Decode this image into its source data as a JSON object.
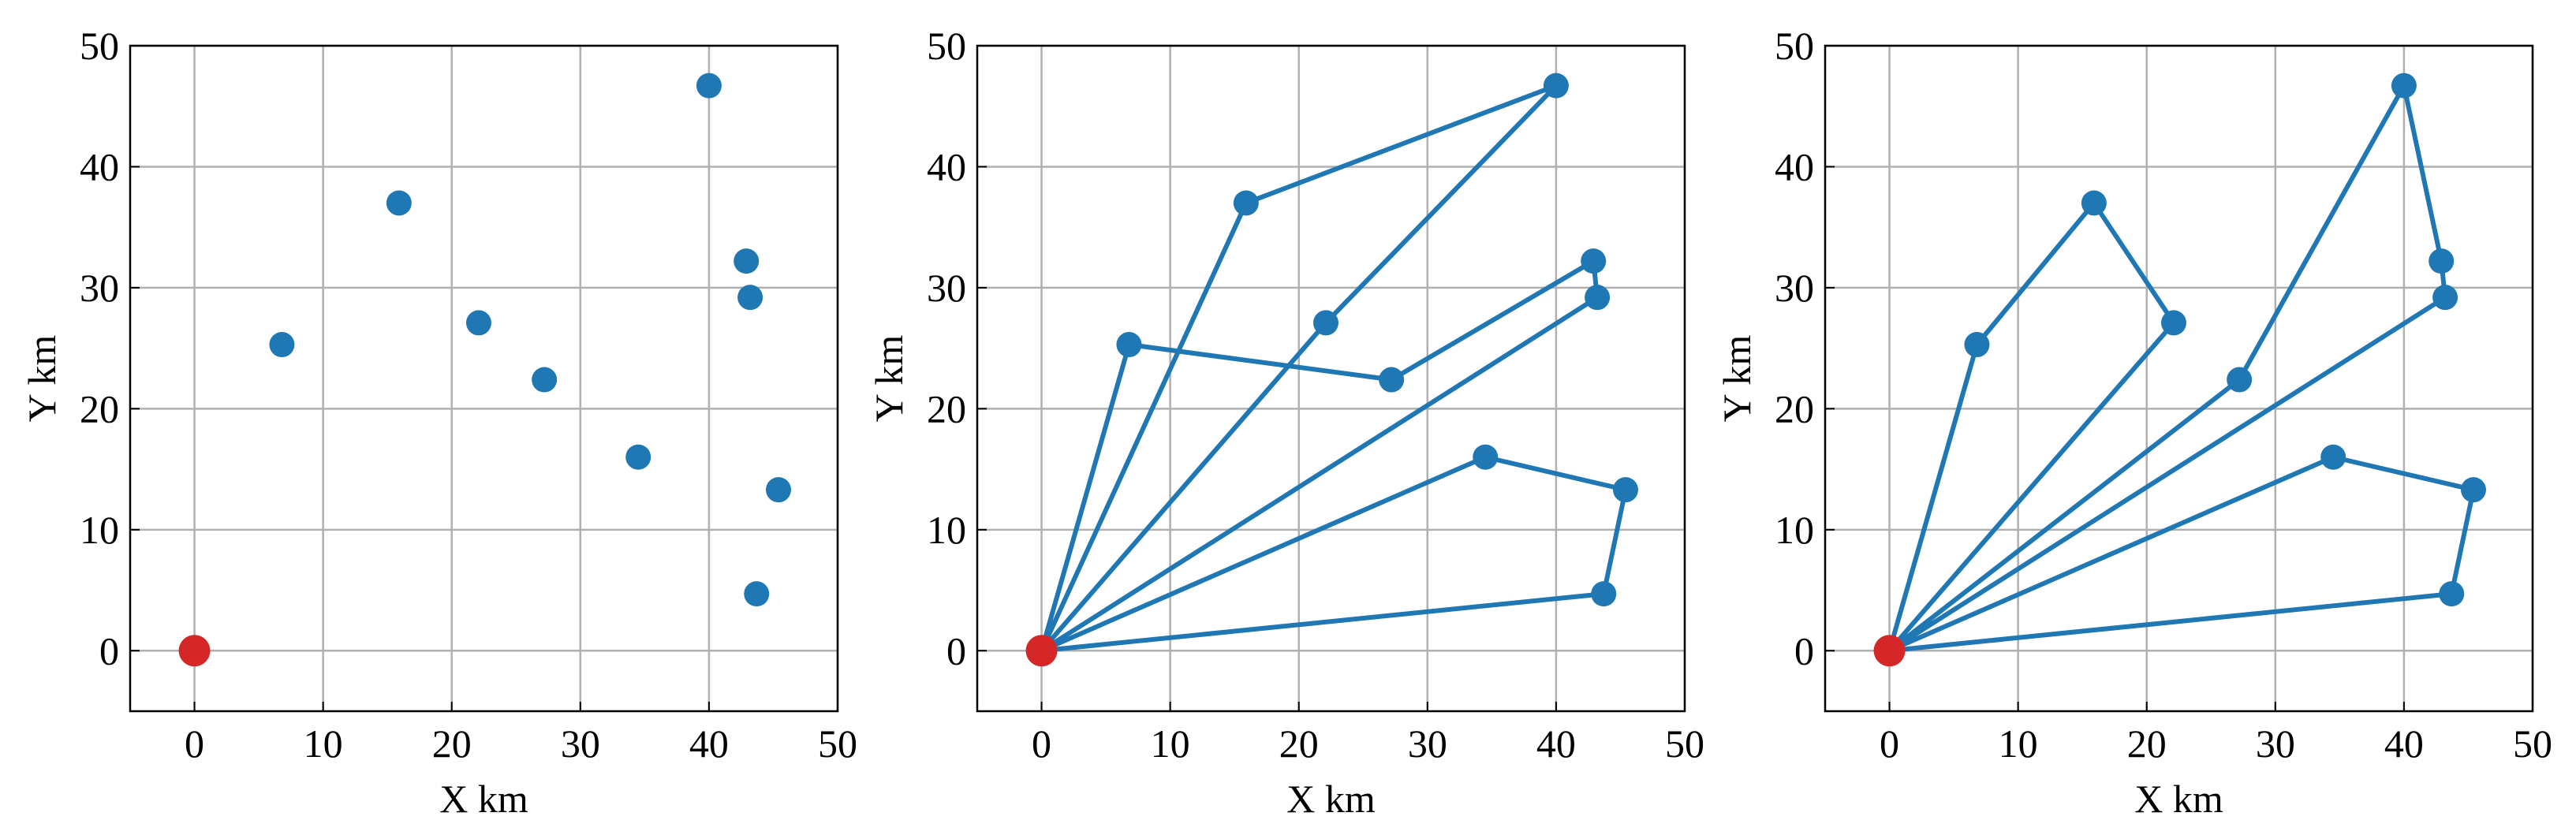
{
  "chart_data": [
    {
      "type": "scatter",
      "xlabel": "X km",
      "ylabel": "Y km",
      "xlim": [
        -5,
        50
      ],
      "ylim": [
        -5,
        50
      ],
      "xticks": [
        0,
        10,
        20,
        30,
        40,
        50
      ],
      "yticks": [
        0,
        10,
        20,
        30,
        40,
        50
      ],
      "grid": true,
      "points": {
        "color": "#1f77b4",
        "x": [
          6.8,
          15.9,
          22.1,
          27.2,
          34.5,
          40.0,
          42.9,
          43.2,
          45.4,
          43.7
        ],
        "y": [
          25.3,
          37.0,
          27.1,
          22.4,
          16.0,
          46.7,
          32.2,
          29.2,
          13.3,
          4.7
        ]
      },
      "depot": {
        "color": "#d62728",
        "x": 0,
        "y": 0
      }
    },
    {
      "type": "route",
      "xlabel": "X km",
      "ylabel": "Y km",
      "xlim": [
        -5,
        50
      ],
      "ylim": [
        -5,
        50
      ],
      "xticks": [
        0,
        10,
        20,
        30,
        40,
        50
      ],
      "yticks": [
        0,
        10,
        20,
        30,
        40,
        50
      ],
      "grid": true,
      "line_color": "#1f77b4",
      "routes": [
        {
          "x": [
            0,
            6.8,
            27.2,
            42.9,
            43.2,
            0
          ],
          "y": [
            0,
            25.3,
            22.4,
            32.2,
            29.2,
            0
          ]
        },
        {
          "x": [
            0,
            15.9,
            40.0,
            22.1,
            0
          ],
          "y": [
            0,
            37.0,
            46.7,
            27.1,
            0
          ]
        },
        {
          "x": [
            0,
            34.5,
            45.4,
            43.7,
            0
          ],
          "y": [
            0,
            16.0,
            13.3,
            4.7,
            0
          ]
        }
      ],
      "points": {
        "color": "#1f77b4",
        "x": [
          6.8,
          15.9,
          22.1,
          27.2,
          34.5,
          40.0,
          42.9,
          43.2,
          45.4,
          43.7
        ],
        "y": [
          25.3,
          37.0,
          27.1,
          22.4,
          16.0,
          46.7,
          32.2,
          29.2,
          13.3,
          4.7
        ]
      },
      "depot": {
        "color": "#d62728",
        "x": 0,
        "y": 0
      }
    },
    {
      "type": "route",
      "xlabel": "X km",
      "ylabel": "Y km",
      "xlim": [
        -5,
        50
      ],
      "ylim": [
        -5,
        50
      ],
      "xticks": [
        0,
        10,
        20,
        30,
        40,
        50
      ],
      "yticks": [
        0,
        10,
        20,
        30,
        40,
        50
      ],
      "grid": true,
      "line_color": "#1f77b4",
      "routes": [
        {
          "x": [
            0,
            6.8,
            15.9,
            22.1,
            0
          ],
          "y": [
            0,
            25.3,
            37.0,
            27.1,
            0
          ]
        },
        {
          "x": [
            0,
            27.2,
            40.0,
            42.9,
            43.2,
            0
          ],
          "y": [
            0,
            22.4,
            46.7,
            32.2,
            29.2,
            0
          ]
        },
        {
          "x": [
            0,
            34.5,
            45.4,
            43.7,
            0
          ],
          "y": [
            0,
            16.0,
            13.3,
            4.7,
            0
          ]
        }
      ],
      "points": {
        "color": "#1f77b4",
        "x": [
          6.8,
          15.9,
          22.1,
          27.2,
          34.5,
          40.0,
          42.9,
          43.2,
          45.4,
          43.7
        ],
        "y": [
          25.3,
          37.0,
          27.1,
          22.4,
          16.0,
          46.7,
          32.2,
          29.2,
          13.3,
          4.7
        ]
      },
      "depot": {
        "color": "#d62728",
        "x": 0,
        "y": 0
      }
    }
  ]
}
